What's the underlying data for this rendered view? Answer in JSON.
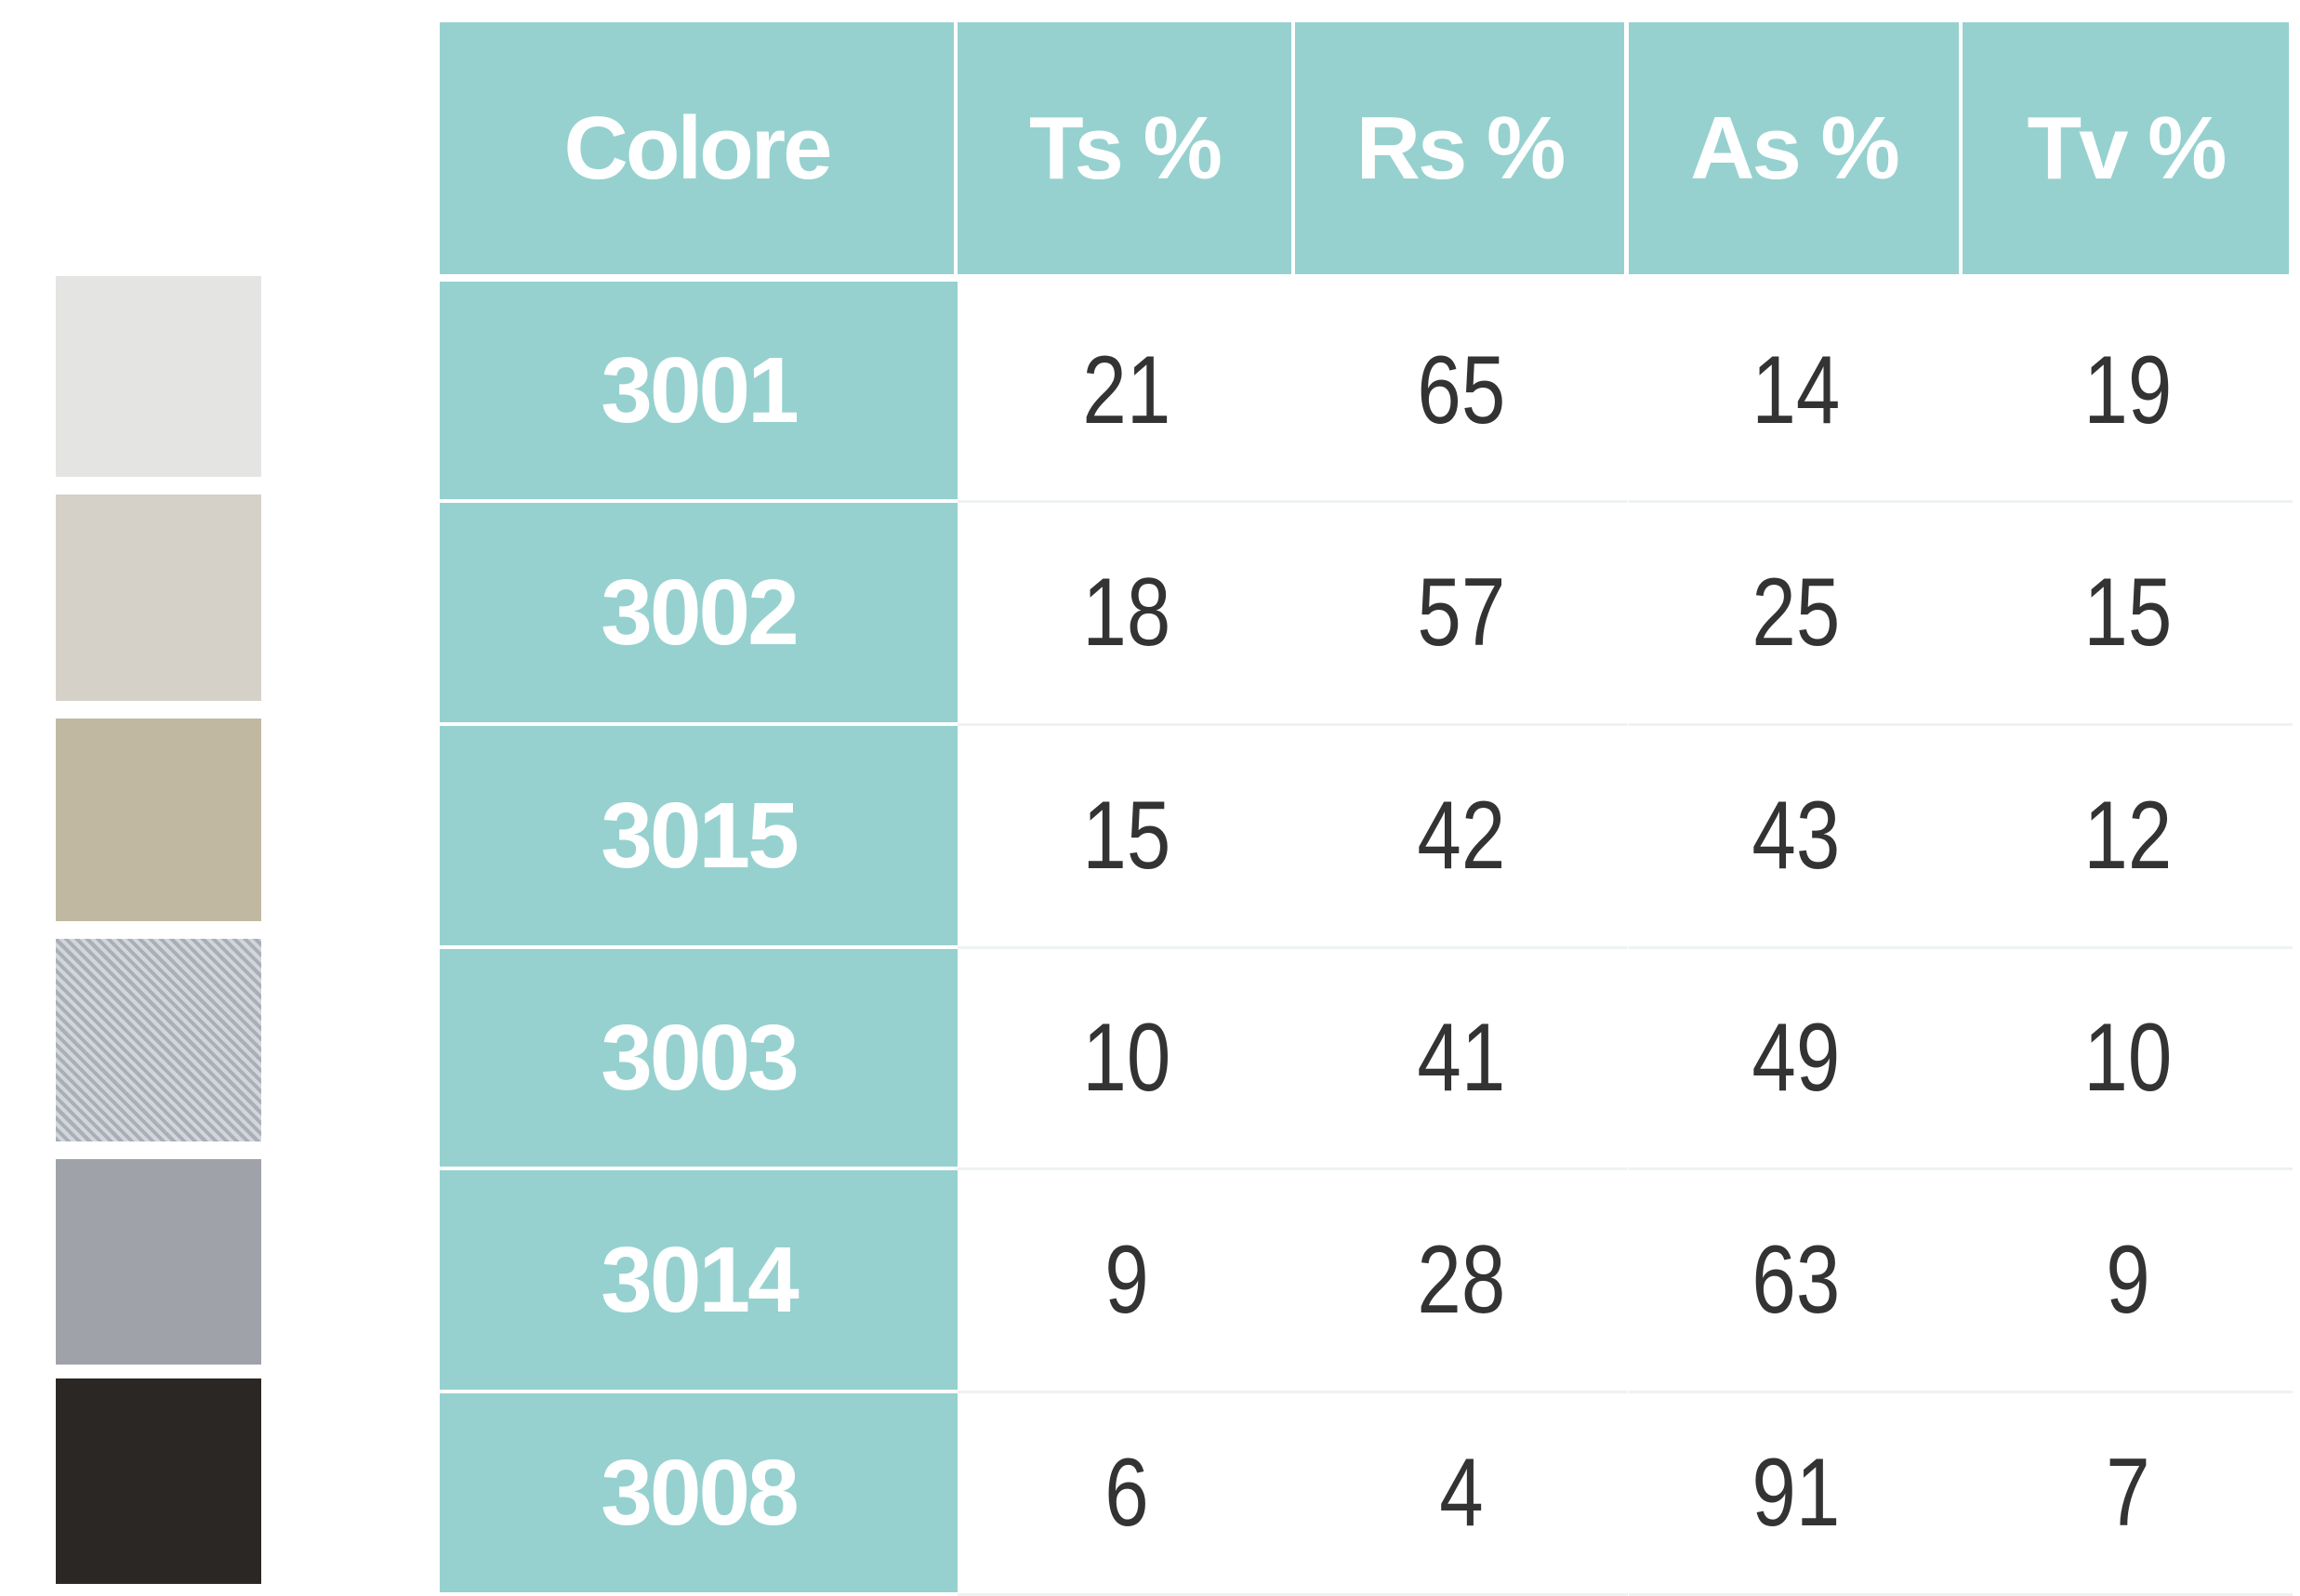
{
  "table": {
    "header": [
      "Colore",
      "Ts %",
      "Rs %",
      "As %",
      "Tv %"
    ],
    "rows": [
      [
        "3001",
        21,
        65,
        14,
        19
      ],
      [
        "3002",
        18,
        57,
        25,
        15
      ],
      [
        "3015",
        15,
        42,
        43,
        12
      ],
      [
        "3003",
        10,
        41,
        49,
        10
      ],
      [
        "3014",
        9,
        28,
        63,
        9
      ],
      [
        "3008",
        6,
        4,
        91,
        7
      ]
    ]
  }
}
